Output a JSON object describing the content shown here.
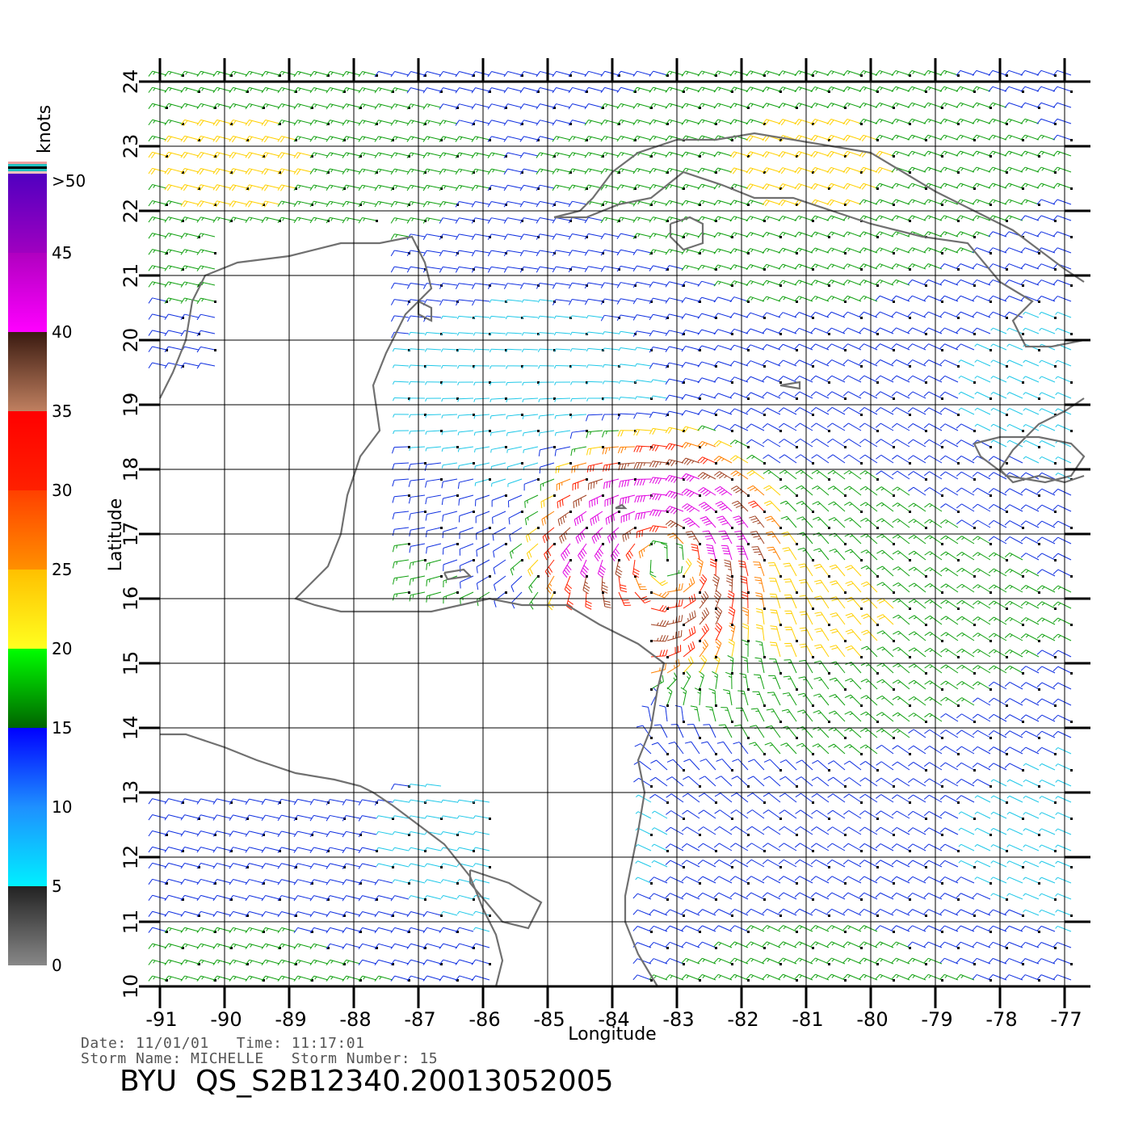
{
  "colorbar": {
    "unit_label": "knots",
    "tick_labels": [
      ">50",
      "45",
      "40",
      "35",
      "30",
      "25",
      "20",
      "15",
      "10",
      "5",
      "0"
    ],
    "tick_values": [
      50,
      45,
      40,
      35,
      30,
      25,
      20,
      15,
      10,
      5,
      0
    ],
    "bands": [
      {
        "from": 0,
        "to": 5,
        "top": "#222222",
        "bottom": "#888888"
      },
      {
        "from": 5,
        "to": 10,
        "top": "#1e90ff",
        "bottom": "#00f0ff"
      },
      {
        "from": 10,
        "to": 15,
        "top": "#0000ff",
        "bottom": "#1e90ff"
      },
      {
        "from": 15,
        "to": 20,
        "top": "#00ff00",
        "bottom": "#006400"
      },
      {
        "from": 20,
        "to": 25,
        "top": "#ffc000",
        "bottom": "#ffff20"
      },
      {
        "from": 25,
        "to": 30,
        "top": "#ff4000",
        "bottom": "#ff9000"
      },
      {
        "from": 30,
        "to": 35,
        "top": "#ff0000",
        "bottom": "#ff2000"
      },
      {
        "from": 35,
        "to": 40,
        "top": "#3a1a10",
        "bottom": "#c08060"
      },
      {
        "from": 40,
        "to": 45,
        "top": "#b000c0",
        "bottom": "#ff00ff"
      },
      {
        "from": 45,
        "to": 50,
        "top": "#5000c0",
        "bottom": "#a000c0"
      }
    ],
    "cap_colors": [
      "#f0a0a0",
      "#20c0c0",
      "#000000",
      "#20c0c0",
      "#f0c0c0"
    ]
  },
  "axes": {
    "xlabel": "Longitude",
    "ylabel": "Latitude",
    "xlim": [
      -91,
      -76.7
    ],
    "ylim": [
      10,
      24.2
    ],
    "xticks": [
      "-91",
      "-90",
      "-89",
      "-88",
      "-87",
      "-86",
      "-85",
      "-84",
      "-83",
      "-82",
      "-81",
      "-80",
      "-79",
      "-78",
      "-77"
    ],
    "yticks": [
      "10",
      "11",
      "12",
      "13",
      "14",
      "15",
      "16",
      "17",
      "18",
      "19",
      "20",
      "21",
      "22",
      "23",
      "24"
    ],
    "grid": true
  },
  "storm": {
    "name": "MICHELLE",
    "center_lon": -83.2,
    "center_lat": 16.6
  },
  "footer": {
    "date_line": "Date: 11/01/01   Time: 11:17:01",
    "storm_line": "Storm Name: MICHELLE   Storm Number: 15",
    "file_line": "BYU  QS_S2B12340.20013052005"
  },
  "colors": {
    "coastline": "#707070",
    "grid": "#000000"
  },
  "coastlines": {
    "yucatan_gulf": [
      [
        -91,
        19.1
      ],
      [
        -90.8,
        19.5
      ],
      [
        -90.6,
        20.0
      ],
      [
        -90.5,
        20.6
      ],
      [
        -90.3,
        21.0
      ],
      [
        -89.8,
        21.2
      ],
      [
        -89.0,
        21.3
      ],
      [
        -88.2,
        21.5
      ],
      [
        -87.6,
        21.5
      ],
      [
        -87.1,
        21.6
      ],
      [
        -86.9,
        21.2
      ],
      [
        -86.8,
        20.8
      ],
      [
        -87.2,
        20.4
      ],
      [
        -87.5,
        19.8
      ],
      [
        -87.7,
        19.3
      ],
      [
        -87.6,
        18.6
      ],
      [
        -87.9,
        18.2
      ],
      [
        -88.1,
        17.6
      ],
      [
        -88.2,
        17.0
      ],
      [
        -88.4,
        16.5
      ],
      [
        -88.9,
        16.0
      ],
      [
        -88.6,
        15.9
      ],
      [
        -88.2,
        15.8
      ],
      [
        -87.6,
        15.8
      ],
      [
        -86.8,
        15.8
      ],
      [
        -85.9,
        16.0
      ],
      [
        -85.4,
        15.9
      ],
      [
        -84.7,
        15.9
      ],
      [
        -84.2,
        15.6
      ],
      [
        -83.6,
        15.3
      ],
      [
        -83.2,
        15.0
      ],
      [
        -83.3,
        14.6
      ],
      [
        -83.4,
        14.0
      ],
      [
        -83.6,
        13.5
      ],
      [
        -83.5,
        13.0
      ],
      [
        -83.6,
        12.4
      ],
      [
        -83.7,
        11.9
      ],
      [
        -83.8,
        11.4
      ],
      [
        -83.8,
        11.0
      ],
      [
        -83.6,
        10.5
      ],
      [
        -83.3,
        10.0
      ]
    ],
    "honduras_gulf_fonseca": [
      [
        -91,
        13.9
      ],
      [
        -90.6,
        13.9
      ],
      [
        -90.0,
        13.7
      ],
      [
        -89.5,
        13.5
      ],
      [
        -88.9,
        13.3
      ],
      [
        -88.3,
        13.2
      ],
      [
        -87.9,
        13.1
      ],
      [
        -87.7,
        13.0
      ],
      [
        -87.4,
        12.8
      ],
      [
        -87.0,
        12.5
      ],
      [
        -86.6,
        12.2
      ],
      [
        -86.2,
        11.7
      ],
      [
        -86.0,
        11.2
      ],
      [
        -85.8,
        10.8
      ],
      [
        -85.7,
        10.4
      ],
      [
        -85.8,
        10.0
      ]
    ],
    "cuba": [
      [
        -84.9,
        21.9
      ],
      [
        -84.5,
        22.0
      ],
      [
        -84.3,
        22.2
      ],
      [
        -84.0,
        22.6
      ],
      [
        -83.6,
        22.9
      ],
      [
        -83.0,
        23.1
      ],
      [
        -82.4,
        23.1
      ],
      [
        -81.8,
        23.2
      ],
      [
        -81.2,
        23.1
      ],
      [
        -80.6,
        23.0
      ],
      [
        -80.0,
        22.9
      ],
      [
        -79.5,
        22.6
      ],
      [
        -79.0,
        22.3
      ],
      [
        -78.4,
        22.0
      ],
      [
        -77.8,
        21.7
      ],
      [
        -77.4,
        21.4
      ],
      [
        -77.0,
        21.1
      ],
      [
        -76.7,
        20.9
      ]
    ],
    "cuba_south": [
      [
        -76.7,
        20.0
      ],
      [
        -77.2,
        19.9
      ],
      [
        -77.6,
        19.9
      ],
      [
        -77.8,
        20.3
      ],
      [
        -77.5,
        20.6
      ],
      [
        -78.0,
        20.9
      ],
      [
        -78.5,
        21.5
      ],
      [
        -79.2,
        21.6
      ],
      [
        -80.0,
        21.8
      ],
      [
        -80.6,
        22.0
      ],
      [
        -81.2,
        22.2
      ],
      [
        -81.8,
        22.2
      ],
      [
        -82.3,
        22.4
      ],
      [
        -82.9,
        22.6
      ],
      [
        -83.4,
        22.2
      ],
      [
        -83.9,
        22.1
      ],
      [
        -84.4,
        21.9
      ],
      [
        -84.9,
        21.9
      ]
    ],
    "isla_juventud": [
      [
        -83.1,
        21.8
      ],
      [
        -82.8,
        21.9
      ],
      [
        -82.6,
        21.8
      ],
      [
        -82.6,
        21.5
      ],
      [
        -82.9,
        21.4
      ],
      [
        -83.1,
        21.6
      ],
      [
        -83.1,
        21.8
      ]
    ],
    "jamaica": [
      [
        -78.4,
        18.4
      ],
      [
        -78.0,
        18.5
      ],
      [
        -77.4,
        18.5
      ],
      [
        -76.9,
        18.4
      ],
      [
        -76.7,
        18.2
      ],
      [
        -76.9,
        17.9
      ],
      [
        -77.3,
        17.8
      ],
      [
        -77.9,
        17.9
      ],
      [
        -78.3,
        18.2
      ],
      [
        -78.4,
        18.4
      ]
    ],
    "cayman": [
      [
        -81.4,
        19.3
      ],
      [
        -81.1,
        19.35
      ],
      [
        -81.1,
        19.25
      ],
      [
        -81.4,
        19.3
      ]
    ],
    "swan": [
      [
        -83.95,
        17.4
      ],
      [
        -83.85,
        17.45
      ],
      [
        -83.8,
        17.4
      ],
      [
        -83.95,
        17.4
      ]
    ],
    "bay_islands": [
      [
        -86.6,
        16.4
      ],
      [
        -86.3,
        16.45
      ],
      [
        -86.2,
        16.35
      ],
      [
        -86.55,
        16.3
      ],
      [
        -86.6,
        16.4
      ]
    ],
    "nicaragua_lake": [
      [
        -86.2,
        11.8
      ],
      [
        -85.6,
        11.6
      ],
      [
        -85.1,
        11.3
      ],
      [
        -85.3,
        10.9
      ],
      [
        -85.7,
        11.0
      ],
      [
        -86.2,
        11.6
      ],
      [
        -86.2,
        11.8
      ]
    ],
    "cozumel": [
      [
        -87.0,
        20.6
      ],
      [
        -86.8,
        20.5
      ],
      [
        -86.8,
        20.3
      ],
      [
        -87.0,
        20.4
      ],
      [
        -87.0,
        20.6
      ]
    ],
    "hispaniola": [
      [
        -76.7,
        19.1
      ],
      [
        -77.0,
        18.9
      ],
      [
        -77.4,
        18.7
      ],
      [
        -77.6,
        18.5
      ],
      [
        -77.8,
        18.3
      ],
      [
        -78.0,
        18.0
      ],
      [
        -77.8,
        17.8
      ],
      [
        -77.4,
        17.9
      ],
      [
        -77.0,
        17.8
      ],
      [
        -76.7,
        17.9
      ]
    ]
  },
  "wind_field": {
    "grid_step_deg": 0.25,
    "storm_radius_deg": 1.4,
    "max_speed_kt": 45
  }
}
